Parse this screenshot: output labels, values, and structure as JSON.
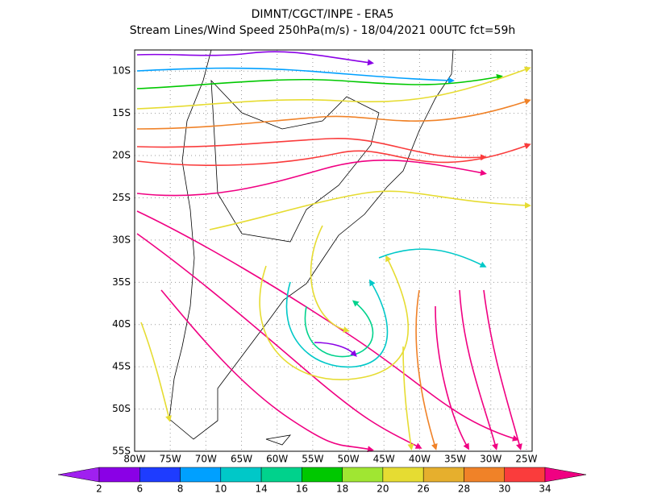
{
  "title": "DIMNT/CGCT/INPE -  ERA5",
  "subtitle": "Stream Lines/Wind Speed 250hPa(m/s) -  18/04/2021 00UTC fct=59h",
  "map": {
    "lon_range": [
      -80,
      -24.2
    ],
    "lat_range": [
      -55,
      -7.5
    ],
    "lat_ticks": [
      {
        "value": -10,
        "label": "10S"
      },
      {
        "value": -15,
        "label": "15S"
      },
      {
        "value": -20,
        "label": "20S"
      },
      {
        "value": -25,
        "label": "25S"
      },
      {
        "value": -30,
        "label": "30S"
      },
      {
        "value": -35,
        "label": "35S"
      },
      {
        "value": -40,
        "label": "40S"
      },
      {
        "value": -45,
        "label": "45S"
      },
      {
        "value": -50,
        "label": "50S"
      },
      {
        "value": -55,
        "label": "55S"
      }
    ],
    "lon_ticks": [
      {
        "value": -80,
        "label": "80W"
      },
      {
        "value": -75,
        "label": "75W"
      },
      {
        "value": -70,
        "label": "70W"
      },
      {
        "value": -65,
        "label": "65W"
      },
      {
        "value": -60,
        "label": "60W"
      },
      {
        "value": -55,
        "label": "55W"
      },
      {
        "value": -50,
        "label": "50W"
      },
      {
        "value": -45,
        "label": "45W"
      },
      {
        "value": -40,
        "label": "40W"
      },
      {
        "value": -35,
        "label": "35W"
      },
      {
        "value": -30,
        "label": "30W"
      },
      {
        "value": -25,
        "label": "25W"
      }
    ]
  },
  "colorbar": {
    "labels": [
      2,
      6,
      8,
      10,
      14,
      16,
      18,
      20,
      26,
      28,
      30,
      34
    ],
    "colors": [
      "#a020f0",
      "#8a00e6",
      "#1e3cff",
      "#00a0ff",
      "#00c8c8",
      "#00d28c",
      "#00c800",
      "#a0e632",
      "#e6dc32",
      "#e6af2d",
      "#f08228",
      "#fa3c3c",
      "#f00082"
    ]
  }
}
